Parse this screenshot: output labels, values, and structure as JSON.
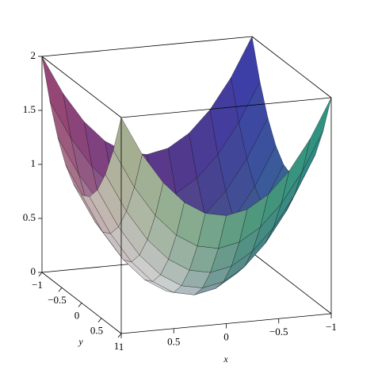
{
  "chart_data": {
    "type": "surface",
    "x": [
      -1,
      -0.8,
      -0.6,
      -0.4,
      -0.2,
      0,
      0.2,
      0.4,
      0.6,
      0.8,
      1
    ],
    "y": [
      -1,
      -0.8,
      -0.6,
      -0.4,
      -0.2,
      0,
      0.2,
      0.4,
      0.6,
      0.8,
      1
    ],
    "z": [
      [
        2,
        1.64,
        1.36,
        1.16,
        1.04,
        1,
        1.04,
        1.16,
        1.36,
        1.64,
        2
      ],
      [
        1.64,
        1.28,
        1,
        0.8,
        0.68,
        0.64,
        0.68,
        0.8,
        1,
        1.28,
        1.64
      ],
      [
        1.36,
        1,
        0.72,
        0.52,
        0.4,
        0.36,
        0.4,
        0.52,
        0.72,
        1,
        1.36
      ],
      [
        1.16,
        0.8,
        0.52,
        0.32,
        0.2,
        0.16,
        0.2,
        0.32,
        0.52,
        0.8,
        1.16
      ],
      [
        1.04,
        0.68,
        0.4,
        0.2,
        0.08,
        0.04,
        0.08,
        0.2,
        0.4,
        0.68,
        1.04
      ],
      [
        1,
        0.64,
        0.36,
        0.16,
        0.04,
        0,
        0.04,
        0.16,
        0.36,
        0.64,
        1
      ],
      [
        1.04,
        0.68,
        0.4,
        0.2,
        0.08,
        0.04,
        0.08,
        0.2,
        0.4,
        0.68,
        1.04
      ],
      [
        1.16,
        0.8,
        0.52,
        0.32,
        0.2,
        0.16,
        0.2,
        0.32,
        0.52,
        0.8,
        1.16
      ],
      [
        1.36,
        1,
        0.72,
        0.52,
        0.4,
        0.36,
        0.4,
        0.52,
        0.72,
        1,
        1.36
      ],
      [
        1.64,
        1.28,
        1,
        0.8,
        0.68,
        0.64,
        0.68,
        0.8,
        1,
        1.28,
        1.64
      ],
      [
        2,
        1.64,
        1.36,
        1.16,
        1.04,
        1,
        1.04,
        1.16,
        1.36,
        1.64,
        2
      ]
    ],
    "xlim": [
      -1,
      1
    ],
    "ylim": [
      -1,
      1
    ],
    "zlim": [
      0,
      2
    ],
    "xticks": [
      {
        "value": -1,
        "label": "−1"
      },
      {
        "value": -0.5,
        "label": "−0.5"
      },
      0,
      0.5,
      1
    ],
    "yticks": [
      {
        "value": -1,
        "label": "−1"
      },
      {
        "value": -0.5,
        "label": "−0.5"
      },
      0,
      0.5,
      1
    ],
    "zticks": [
      0,
      0.5,
      1,
      1.5,
      2
    ],
    "xlabel": "x",
    "ylabel": "y"
  }
}
